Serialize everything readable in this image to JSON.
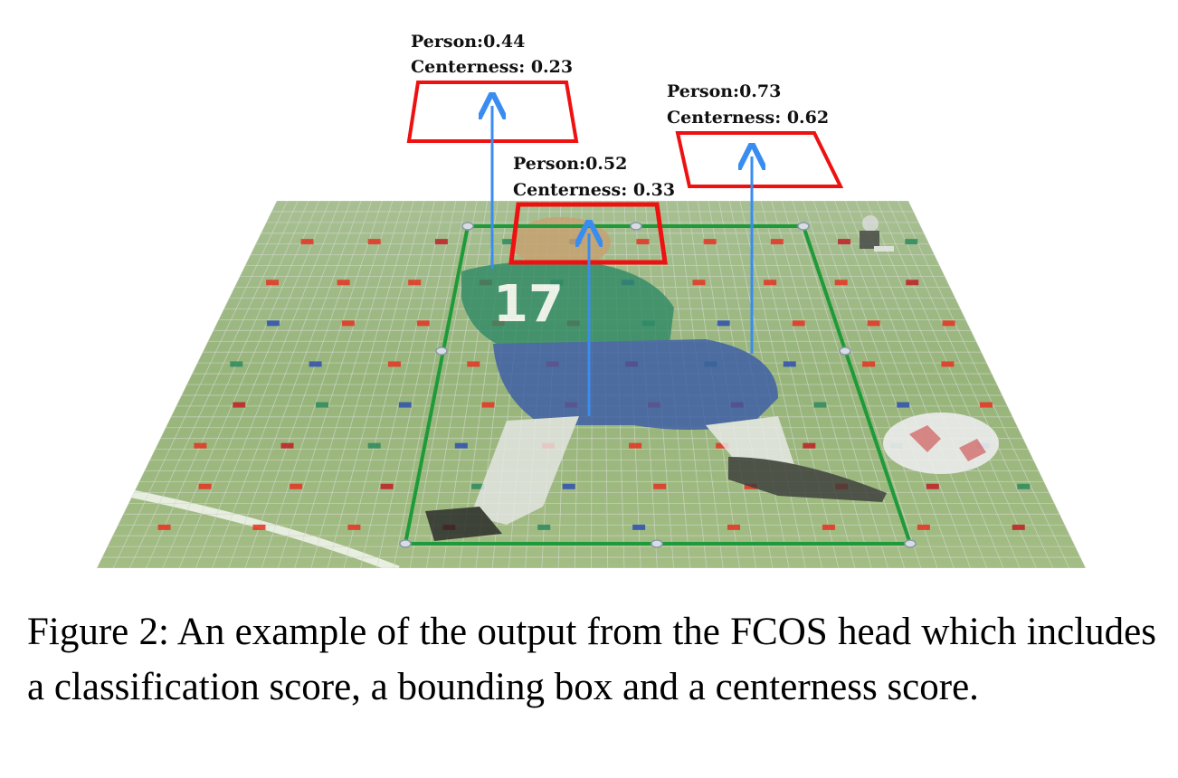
{
  "figure": {
    "detections": [
      {
        "class_label": "Person:0.44",
        "centerness_label": "Centerness: 0.23"
      },
      {
        "class_label": "Person:0.52",
        "centerness_label": "Centerness: 0.33"
      },
      {
        "class_label": "Person:0.73",
        "centerness_label": "Centerness: 0.62"
      }
    ],
    "colors": {
      "box_red": "#ee1111",
      "arrow_blue": "#3a8df0",
      "bbox_green": "#1f9a3a",
      "grass": "#9bb878",
      "grid_line": "#d2d8cc"
    },
    "icons": [
      "soccer-player",
      "soccer-ball",
      "person-thumbnail"
    ]
  },
  "caption": {
    "text": "Figure 2: An example of the output from the FCOS head which includes a classification score, a bounding box and a centerness score."
  }
}
